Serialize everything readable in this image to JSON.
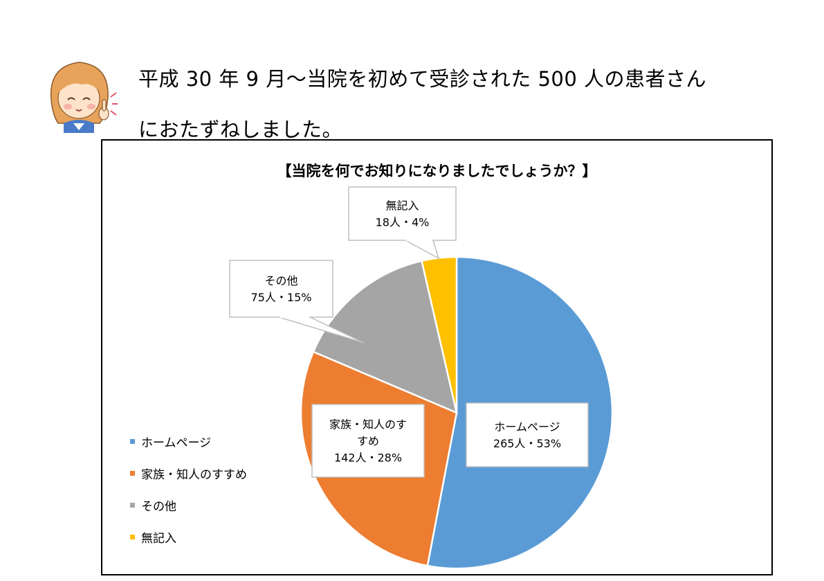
{
  "intro": {
    "line1": "平成 30 年 9 月〜当院を初めて受診された 500 人の患者さん",
    "line2": "におたずねしました。"
  },
  "chart_data": {
    "type": "pie",
    "title": "【当院を何でお知りになりましたでしょうか？】",
    "slices": [
      {
        "name": "ホームページ",
        "count": 265,
        "percent": 53,
        "color": "#5B9BD5",
        "callout": [
          "ホームページ",
          "265人・53%"
        ]
      },
      {
        "name": "家族・知人のすすめ",
        "count": 142,
        "percent": 28,
        "color": "#ED7D31",
        "callout": [
          "家族・知人のす",
          "すめ",
          "142人・28%"
        ]
      },
      {
        "name": "その他",
        "count": 75,
        "percent": 15,
        "color": "#A5A5A5",
        "callout": [
          "その他",
          "75人・15%"
        ]
      },
      {
        "name": "無記入",
        "count": 18,
        "percent": 4,
        "color": "#FFC000",
        "callout": [
          "無記入",
          "18人・4%"
        ]
      }
    ],
    "legend": {
      "position": "bottom-left",
      "items": [
        "ホームページ",
        "家族・知人のすすめ",
        "その他",
        "無記入"
      ]
    }
  }
}
